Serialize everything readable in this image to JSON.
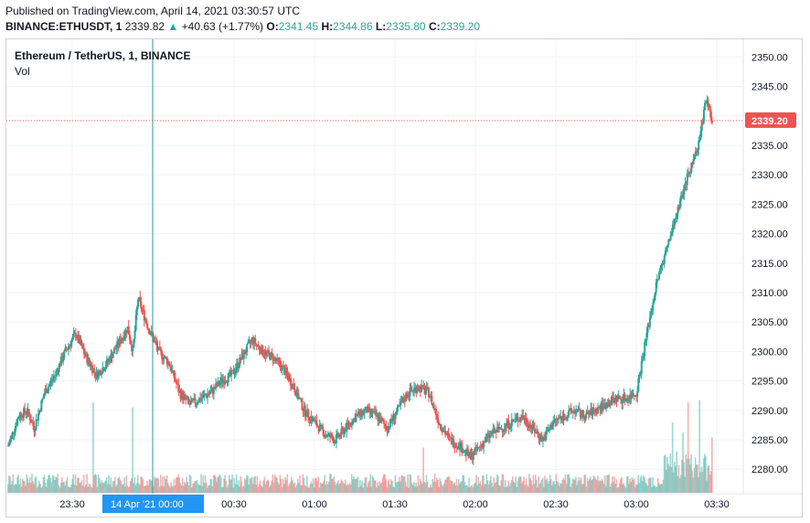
{
  "header": {
    "published": "Published on TradingView.com, April 14, 2021 03:30:57 UTC",
    "symbol": "BINANCE:ETHUSDT, 1",
    "price": "2339.82",
    "change_arrow": "▲",
    "change": "+40.63 (+1.77%)",
    "o_label": "O:",
    "o_value": "2341.45",
    "h_label": "H:",
    "h_value": "2344.86",
    "l_label": "L:",
    "l_value": "2335.80",
    "c_label": "C:",
    "c_value": "2339.20"
  },
  "legend": {
    "title": "Ethereum / TetherUS, 1, BINANCE",
    "volume": "Vol"
  },
  "colors": {
    "up": "#26a69a",
    "down": "#ef5350",
    "crosshair": "#2a9d8f",
    "time_highlight": "#2196f3",
    "price_tag": "#ef5350"
  },
  "chart_data": {
    "type": "candlestick",
    "ylim": [
      2276,
      2353
    ],
    "y_ticks": [
      2280.0,
      2285.0,
      2290.0,
      2295.0,
      2300.0,
      2305.0,
      2310.0,
      2315.0,
      2320.0,
      2325.0,
      2330.0,
      2335.0,
      2340.0,
      2345.0,
      2350.0
    ],
    "y_tick_labels": [
      "2280.00",
      "2285.00",
      "2290.00",
      "2295.00",
      "2300.00",
      "2305.00",
      "2310.00",
      "2315.00",
      "2320.00",
      "2325.00",
      "2330.00",
      "2335.00",
      "2340.00",
      "2345.00",
      "2350.00"
    ],
    "x_tick_labels": [
      "23:30",
      "00:00",
      "00:30",
      "01:00",
      "01:30",
      "02:00",
      "02:30",
      "03:00",
      "03:30"
    ],
    "x_highlight_label": "14 Apr '21",
    "last_price": 2339.2,
    "last_price_label": "2339.20",
    "anchors": [
      [
        0,
        2284
      ],
      [
        10,
        2289
      ],
      [
        18,
        2290
      ],
      [
        25,
        2287
      ],
      [
        35,
        2293
      ],
      [
        45,
        2296
      ],
      [
        55,
        2300
      ],
      [
        65,
        2303
      ],
      [
        75,
        2299
      ],
      [
        85,
        2296
      ],
      [
        95,
        2298
      ],
      [
        105,
        2301
      ],
      [
        115,
        2304
      ],
      [
        120,
        2300
      ],
      [
        125,
        2309
      ],
      [
        135,
        2304
      ],
      [
        145,
        2300
      ],
      [
        155,
        2298
      ],
      [
        165,
        2293
      ],
      [
        175,
        2291
      ],
      [
        185,
        2292
      ],
      [
        195,
        2293
      ],
      [
        205,
        2295
      ],
      [
        215,
        2296
      ],
      [
        225,
        2299
      ],
      [
        235,
        2302
      ],
      [
        245,
        2300
      ],
      [
        255,
        2299
      ],
      [
        265,
        2297
      ],
      [
        275,
        2294
      ],
      [
        285,
        2290
      ],
      [
        295,
        2288
      ],
      [
        305,
        2286
      ],
      [
        315,
        2285
      ],
      [
        325,
        2287
      ],
      [
        335,
        2289
      ],
      [
        345,
        2290
      ],
      [
        355,
        2289
      ],
      [
        365,
        2287
      ],
      [
        375,
        2290
      ],
      [
        385,
        2293
      ],
      [
        395,
        2294
      ],
      [
        405,
        2293
      ],
      [
        415,
        2288
      ],
      [
        425,
        2285
      ],
      [
        435,
        2284
      ],
      [
        445,
        2282
      ],
      [
        455,
        2284
      ],
      [
        465,
        2286
      ],
      [
        475,
        2287
      ],
      [
        485,
        2288
      ],
      [
        495,
        2289
      ],
      [
        505,
        2287
      ],
      [
        515,
        2285
      ],
      [
        525,
        2288
      ],
      [
        535,
        2289
      ],
      [
        545,
        2290
      ],
      [
        555,
        2289
      ],
      [
        565,
        2290
      ],
      [
        575,
        2291
      ],
      [
        585,
        2292
      ],
      [
        595,
        2292
      ],
      [
        605,
        2293
      ],
      [
        615,
        2303
      ],
      [
        625,
        2312
      ],
      [
        635,
        2318
      ],
      [
        645,
        2324
      ],
      [
        655,
        2330
      ],
      [
        665,
        2335
      ],
      [
        672,
        2343
      ],
      [
        678,
        2339
      ]
    ],
    "volume_spikes": [
      [
        82,
        0.9
      ],
      [
        120,
        0.85
      ],
      [
        400,
        0.45
      ],
      [
        640,
        0.7
      ],
      [
        650,
        0.6
      ],
      [
        655,
        0.9
      ],
      [
        666,
        0.92
      ],
      [
        678,
        0.55
      ]
    ]
  }
}
